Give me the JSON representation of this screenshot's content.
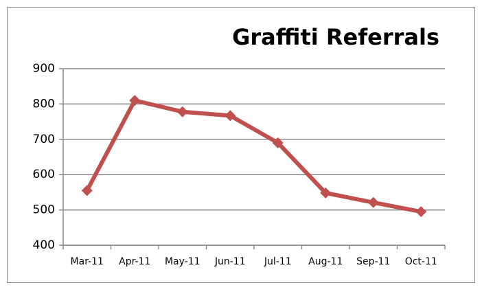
{
  "chart_data": {
    "type": "line",
    "title": "Graffiti Referrals",
    "categories": [
      "Mar-11",
      "Apr-11",
      "May-11",
      "Jun-11",
      "Jul-11",
      "Aug-11",
      "Sep-11",
      "Oct-11"
    ],
    "series": [
      {
        "name": "Graffiti Referrals",
        "color": "#c0504d",
        "values": [
          555,
          810,
          778,
          767,
          690,
          548,
          521,
          495
        ]
      }
    ],
    "ylim": [
      400,
      900
    ],
    "yticks": [
      400,
      500,
      600,
      700,
      800,
      900
    ],
    "grid": true
  }
}
